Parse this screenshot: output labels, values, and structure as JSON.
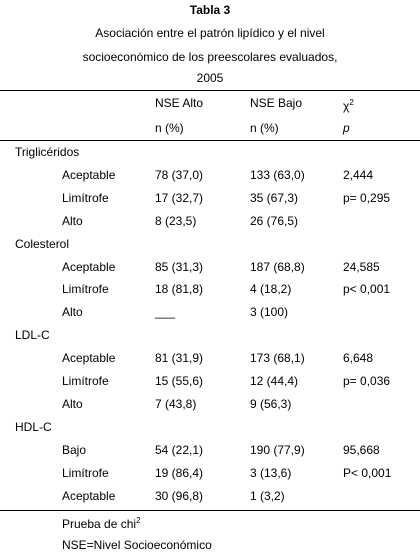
{
  "title": "Tabla 3",
  "subtitle": [
    "Asociación entre el patrón lipídico y el nivel",
    "socioeconómico de los preescolares evaluados,",
    "2005"
  ],
  "header": {
    "col1": "NSE Alto",
    "col2": "NSE Bajo",
    "col3": "χ",
    "col3_sup": "2",
    "unit1": "n (%)",
    "unit2": "n (%)",
    "unit3": "p"
  },
  "groups": [
    {
      "label": "Triglicéridos",
      "rows": [
        {
          "label": "Aceptable",
          "alto": "78 (37,0)",
          "bajo": "133 (63,0)",
          "stat": "2,444"
        },
        {
          "label": "Limítrofe",
          "alto": "17 (32,7)",
          "bajo": "35 (67,3)",
          "stat": "p= 0,295"
        },
        {
          "label": "Alto",
          "alto": "8 (23,5)",
          "bajo": "26 (76,5)"
        }
      ]
    },
    {
      "label": "Colesterol",
      "rows": [
        {
          "label": "Aceptable",
          "alto": "85 (31,3)",
          "bajo": "187 (68,8)",
          "stat": "24,585"
        },
        {
          "label": "Limítrofe",
          "alto": "18 (81,8)",
          "bajo": "4 (18,2)",
          "stat": "p< 0,001"
        },
        {
          "label": "Alto",
          "alto": "___",
          "bajo": "3 (100)"
        }
      ]
    },
    {
      "label": "LDL-C",
      "rows": [
        {
          "label": "Aceptable",
          "alto": "81 (31,9)",
          "bajo": "173 (68,1)",
          "stat": "6,648"
        },
        {
          "label": "Limítrofe",
          "alto": "15 (55,6)",
          "bajo": "12 (44,4)",
          "stat": "p= 0,036"
        },
        {
          "label": "Alto",
          "alto": "7 (43,8)",
          "bajo": "9 (56,3)"
        }
      ]
    },
    {
      "label": "HDL-C",
      "rows": [
        {
          "label": "Bajo",
          "alto": "54 (22,1)",
          "bajo": "190 (77,9)",
          "stat": "95,668"
        },
        {
          "label": "Limítrofe",
          "alto": "19 (86,4)",
          "bajo": "3 (13,6)",
          "stat": "P< 0,001"
        },
        {
          "label": "Aceptable",
          "alto": "30 (96,8)",
          "bajo": "1 (3,2)"
        }
      ]
    }
  ],
  "footnotes": [
    {
      "text": "Prueba de chi",
      "sup": "2"
    },
    {
      "text": "NSE=Nivel Socioeconómico"
    }
  ]
}
